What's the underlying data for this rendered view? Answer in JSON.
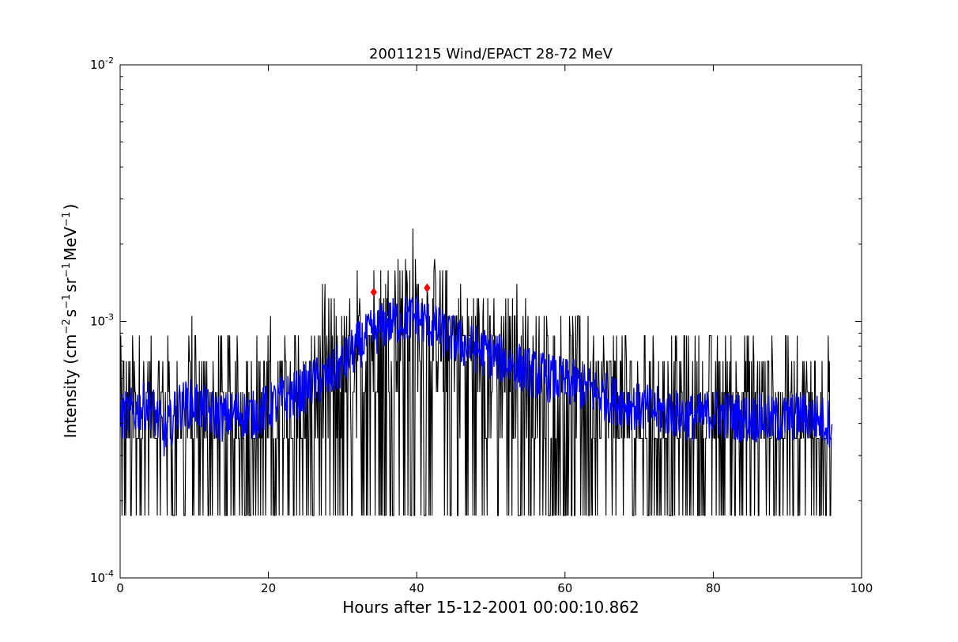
{
  "chart_data": {
    "type": "line",
    "title": "20011215 Wind/EPACT 28-72 MeV",
    "xlabel": "Hours after 15-12-2001 00:00:10.862",
    "ylabel": {
      "prefix": "Intensity (cm",
      "sup1": "−2",
      "mid1": "s",
      "sup2": "−1",
      "mid2": "sr",
      "sup3": "−1",
      "mid3": "MeV",
      "sup4": "−1",
      "suffix": ")"
    },
    "xlim": [
      0,
      100
    ],
    "ylim": [
      0.0001,
      0.01
    ],
    "yscale": "log",
    "grid": false,
    "xticks": [
      0,
      20,
      40,
      60,
      80,
      100
    ],
    "xtick_labels": [
      "0",
      "20",
      "40",
      "60",
      "80",
      "100"
    ],
    "yticks": [
      {
        "value": 0.0001,
        "base": "10",
        "exp": "-4"
      },
      {
        "value": 0.001,
        "base": "10",
        "exp": "-3"
      },
      {
        "value": 0.01,
        "base": "10",
        "exp": "-2"
      }
    ],
    "series": [
      {
        "color": "#000000",
        "style": "raw counts (quantized levels, noisy)",
        "levels": [
          0.000175,
          0.00035,
          0.00053,
          0.0007,
          0.00088,
          0.00105,
          0.00123,
          0.0014,
          0.00158,
          0.00175,
          0.0021,
          0.0023,
          0.0026
        ],
        "x_range": [
          0,
          96
        ],
        "envelope": [
          {
            "x": 0,
            "median": 0.00045,
            "peak": 0.0009
          },
          {
            "x": 10,
            "median": 0.00045,
            "peak": 0.001
          },
          {
            "x": 20,
            "median": 0.00045,
            "peak": 0.001
          },
          {
            "x": 26,
            "median": 0.0005,
            "peak": 0.0013
          },
          {
            "x": 30,
            "median": 0.0006,
            "peak": 0.0018
          },
          {
            "x": 34,
            "median": 0.00085,
            "peak": 0.0019
          },
          {
            "x": 38,
            "median": 0.001,
            "peak": 0.0023
          },
          {
            "x": 40,
            "median": 0.001,
            "peak": 0.0026
          },
          {
            "x": 42,
            "median": 0.00095,
            "peak": 0.0019
          },
          {
            "x": 46,
            "median": 0.0008,
            "peak": 0.0015
          },
          {
            "x": 50,
            "median": 0.0007,
            "peak": 0.0013
          },
          {
            "x": 56,
            "median": 0.0006,
            "peak": 0.0014
          },
          {
            "x": 62,
            "median": 0.00055,
            "peak": 0.0011
          },
          {
            "x": 70,
            "median": 0.00045,
            "peak": 0.001
          },
          {
            "x": 80,
            "median": 0.00045,
            "peak": 0.0009
          },
          {
            "x": 90,
            "median": 0.00045,
            "peak": 0.001
          },
          {
            "x": 96,
            "median": 0.00045,
            "peak": 0.0009
          }
        ]
      },
      {
        "color": "#0000ff",
        "style": "smoothed",
        "points": [
          [
            0,
            0.00042
          ],
          [
            2,
            0.00045
          ],
          [
            4,
            0.00048
          ],
          [
            6,
            0.00036
          ],
          [
            8,
            0.00047
          ],
          [
            10,
            0.00048
          ],
          [
            12,
            0.00044
          ],
          [
            14,
            0.00042
          ],
          [
            16,
            0.00044
          ],
          [
            18,
            0.00043
          ],
          [
            20,
            0.00046
          ],
          [
            22,
            0.0005
          ],
          [
            24,
            0.00052
          ],
          [
            26,
            0.00058
          ],
          [
            28,
            0.0006
          ],
          [
            30,
            0.00068
          ],
          [
            32,
            0.0008
          ],
          [
            34,
            0.0009
          ],
          [
            36,
            0.00098
          ],
          [
            38,
            0.00102
          ],
          [
            40,
            0.00104
          ],
          [
            42,
            0.00096
          ],
          [
            44,
            0.00088
          ],
          [
            46,
            0.00082
          ],
          [
            48,
            0.00078
          ],
          [
            50,
            0.00074
          ],
          [
            52,
            0.0007
          ],
          [
            54,
            0.00066
          ],
          [
            56,
            0.00062
          ],
          [
            58,
            0.0006
          ],
          [
            60,
            0.00058
          ],
          [
            62,
            0.00056
          ],
          [
            64,
            0.00053
          ],
          [
            66,
            0.0005
          ],
          [
            68,
            0.00048
          ],
          [
            70,
            0.00046
          ],
          [
            72,
            0.00045
          ],
          [
            74,
            0.00044
          ],
          [
            76,
            0.00043
          ],
          [
            78,
            0.00042
          ],
          [
            80,
            0.00044
          ],
          [
            82,
            0.00043
          ],
          [
            84,
            0.00042
          ],
          [
            86,
            0.00042
          ],
          [
            88,
            0.00041
          ],
          [
            90,
            0.00042
          ],
          [
            92,
            0.00043
          ],
          [
            94,
            0.00042
          ],
          [
            96,
            0.0004
          ]
        ]
      }
    ],
    "markers": [
      {
        "x": 34.2,
        "y": 0.0013,
        "color": "#ff0000",
        "shape": "diamond"
      },
      {
        "x": 41.4,
        "y": 0.00135,
        "color": "#ff0000",
        "shape": "diamond"
      }
    ]
  }
}
